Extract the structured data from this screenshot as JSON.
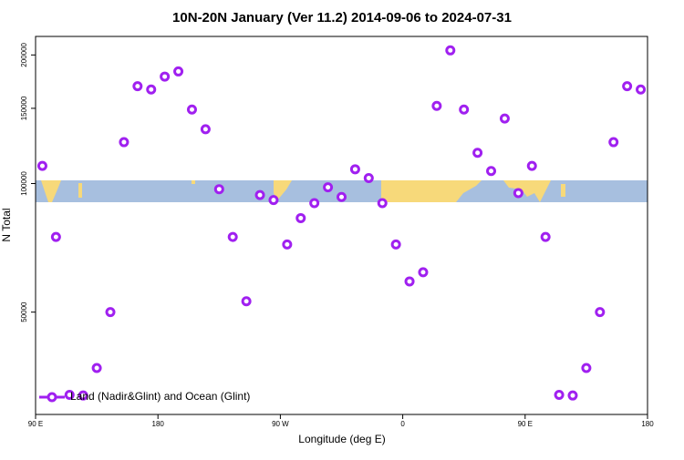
{
  "chart_data": {
    "type": "scatter",
    "title": "10N-20N January (Ver 11.2)   2014-09-06 to 2024-07-31",
    "xlabel": "Longitude (deg E)",
    "ylabel": "N Total",
    "x": [
      95,
      105,
      115,
      125,
      135,
      145,
      155,
      165,
      175,
      185,
      195,
      205,
      215,
      225,
      235,
      245,
      255,
      265,
      275,
      285,
      295,
      305,
      315,
      325,
      335,
      345,
      355,
      365,
      375,
      385,
      395,
      405,
      415,
      425,
      435,
      445,
      455,
      465,
      475,
      485,
      495,
      505,
      515,
      525,
      535
    ],
    "series": [
      {
        "name": "Land (Nadir&Glint) and Ocean (Glint)",
        "color": "#a020f0",
        "values": [
          110000,
          75000,
          32000,
          31900,
          37000,
          50000,
          125000,
          169000,
          166000,
          178000,
          183000,
          149000,
          134000,
          97000,
          75000,
          53000,
          94000,
          91500,
          72000,
          83000,
          90000,
          98000,
          93000,
          108000,
          103000,
          90000,
          72000,
          59000,
          62000,
          152000,
          205000,
          149000,
          118000,
          107000,
          142000,
          95000,
          110000,
          75000,
          32000,
          31900,
          37000,
          50000,
          125000,
          169000,
          166000
        ]
      }
    ],
    "xlim": [
      90,
      540
    ],
    "xticks": [
      {
        "value": 90,
        "label": "90 E"
      },
      180,
      {
        "value": 270,
        "label": "90 W"
      },
      {
        "value": 360,
        "label": "0"
      },
      {
        "value": 450,
        "label": "90 E"
      },
      {
        "value": 540,
        "label": "180"
      }
    ],
    "ylim": [
      28800,
      221000
    ],
    "yticks": [
      50000,
      100000,
      150000,
      200000
    ],
    "log_y": true,
    "legend": "bottom-left"
  }
}
